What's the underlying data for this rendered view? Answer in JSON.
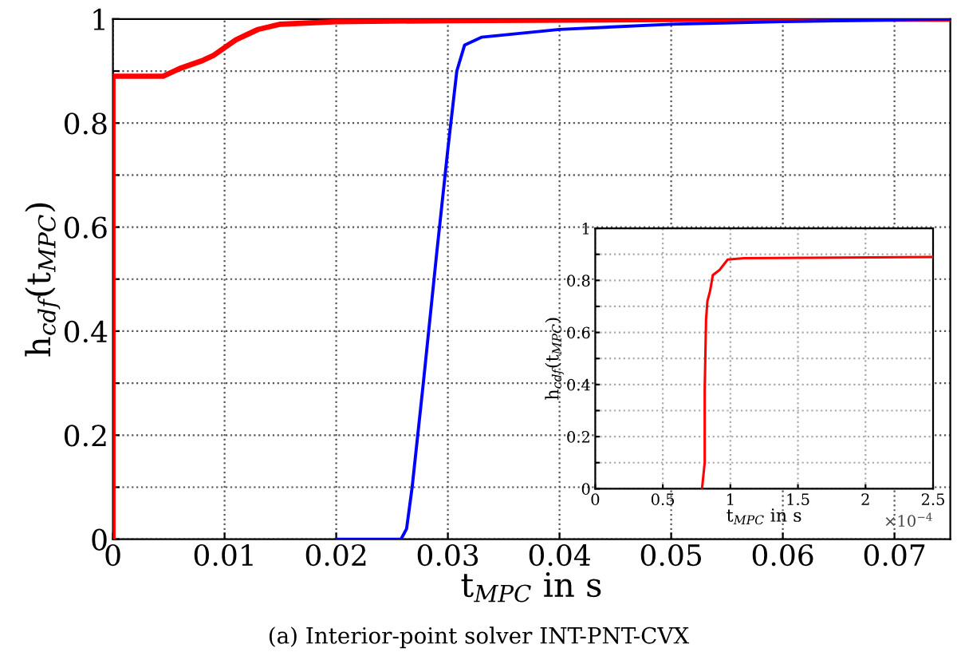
{
  "chart_data": [
    {
      "type": "line",
      "xlabel": "t$_{MPC}$ in s",
      "ylabel": "h$_{cdf}$(t$_{MPC}$)",
      "annotations": [
        "(a) Interior-point solver INT-PNT-CVX"
      ],
      "xlim": [
        0,
        0.075
      ],
      "ylim": [
        0,
        1
      ],
      "xticks": [
        0,
        0.01,
        0.02,
        0.03,
        0.04,
        0.05,
        0.06,
        0.07
      ],
      "yticks": [
        0,
        {
          "value": 0.1,
          "label": null
        },
        0.2,
        {
          "value": 0.3,
          "label": null
        },
        0.4,
        {
          "value": 0.5,
          "label": null
        },
        0.6,
        {
          "value": 0.7,
          "label": null
        },
        0.8,
        {
          "value": 0.9,
          "label": null
        },
        1
      ],
      "grid": true,
      "series": [
        {
          "color": "#ff0000",
          "x": [
            0,
            0,
            0.0045,
            0.006,
            0.008,
            0.009,
            0.01,
            0.011,
            0.012,
            0.013,
            0.015,
            0.02,
            0.03,
            0.05,
            0.075
          ],
          "values": [
            0,
            0.89,
            0.89,
            0.905,
            0.92,
            0.93,
            0.945,
            0.96,
            0.97,
            0.98,
            0.99,
            0.995,
            0.997,
            0.999,
            1
          ]
        },
        {
          "color": "#0000ff",
          "x": [
            0.0201,
            0.0258,
            0.0263,
            0.0268,
            0.0278,
            0.029,
            0.03,
            0.0308,
            0.0315,
            0.033,
            0.04,
            0.05,
            0.06,
            0.075
          ],
          "values": [
            0,
            0,
            0.02,
            0.1,
            0.3,
            0.55,
            0.75,
            0.9,
            0.95,
            0.965,
            0.98,
            0.99,
            0.995,
            1
          ]
        }
      ]
    },
    {
      "type": "line",
      "xlabel": "t$_{MPC}$ in s",
      "ylabel": "h$_{cdf}$(t$_{MPC}$)",
      "annotations": [
        "×10$^{−4}$"
      ],
      "xlim": [
        0,
        2.5
      ],
      "ylim": [
        0,
        1
      ],
      "xticks": [
        0,
        0.5,
        1,
        1.5,
        2,
        2.5
      ],
      "yticks": [
        0,
        {
          "value": 0.1,
          "label": null
        },
        0.2,
        {
          "value": 0.3,
          "label": null
        },
        0.4,
        {
          "value": 0.5,
          "label": null
        },
        0.6,
        {
          "value": 0.7,
          "label": null
        },
        0.8,
        {
          "value": 0.9,
          "label": null
        },
        1
      ],
      "grid": true,
      "series": [
        {
          "color": "#ff0000",
          "x": [
            0.79,
            0.81,
            0.81,
            0.82,
            0.83,
            0.85,
            0.87,
            0.92,
            0.95,
            0.98,
            1.1,
            2.5
          ],
          "values": [
            0,
            0.1,
            0.38,
            0.65,
            0.72,
            0.76,
            0.82,
            0.84,
            0.86,
            0.88,
            0.885,
            0.89
          ]
        }
      ]
    }
  ]
}
